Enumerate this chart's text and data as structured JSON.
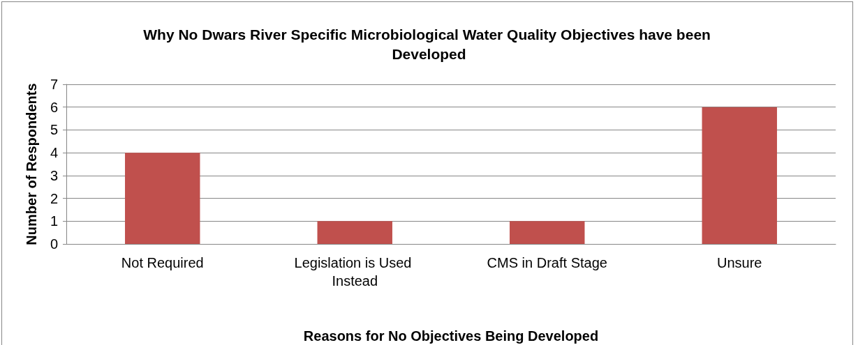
{
  "chart_data": {
    "type": "bar",
    "title": "Why No Dwars River Specific Microbiological Water Quality Objectives have been Developed",
    "xlabel": "Reasons for No Objectives Being Developed",
    "ylabel": "Number of Respondents",
    "categories": [
      "Not Required",
      "Legislation is Used Instead",
      "CMS in Draft Stage",
      "Unsure"
    ],
    "values": [
      4,
      1,
      1,
      6
    ],
    "color": "#c0504d",
    "ylim": [
      0,
      7
    ],
    "yticks": [
      0,
      1,
      2,
      3,
      4,
      5,
      6,
      7
    ],
    "grid": "y"
  }
}
